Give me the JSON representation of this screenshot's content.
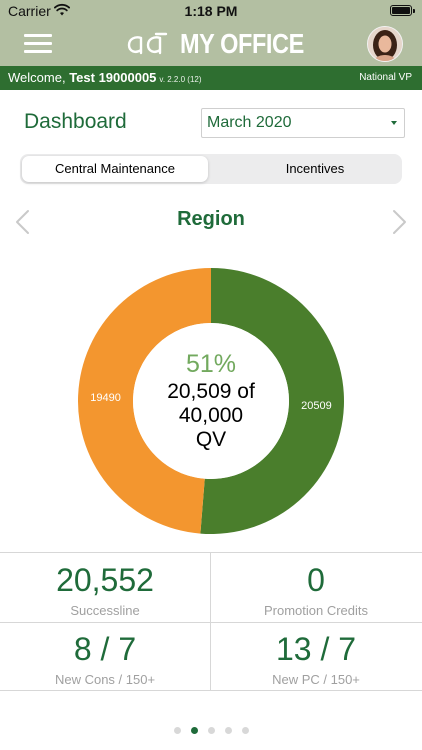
{
  "status_bar": {
    "carrier": "Carrier",
    "time": "1:18 PM"
  },
  "header": {
    "title": "MY OFFICE",
    "logo": "amway-logo",
    "menu_icon": "hamburger-menu-icon",
    "avatar": "user-avatar"
  },
  "welcome_bar": {
    "greeting": "Welcome,",
    "user": "Test 19000005",
    "version": "v. 2.2.0 (12)",
    "rank": "National VP"
  },
  "dashboard": {
    "title": "Dashboard",
    "month_selected": "March 2020"
  },
  "tabs": [
    {
      "label": "Central Maintenance",
      "active": true
    },
    {
      "label": "Incentives",
      "active": false
    }
  ],
  "region": {
    "title": "Region"
  },
  "donut": {
    "percent_label": "51%",
    "center_lines": [
      "20,509 of",
      "40,000",
      "QV"
    ],
    "colors": {
      "achieved": "#4a7e2c",
      "remaining": "#f3962f"
    }
  },
  "chart_data": {
    "type": "pie",
    "categories": [
      "achieved",
      "remaining"
    ],
    "values": [
      20509,
      19490
    ],
    "labels": [
      "20509",
      "19490"
    ]
  },
  "stats": [
    {
      "value": "20,552",
      "label": "Successline"
    },
    {
      "value": "0",
      "label": "Promotion Credits"
    },
    {
      "value": "8 / 7",
      "label": "New Cons / 150+"
    },
    {
      "value": "13 / 7",
      "label": "New PC / 150+"
    }
  ],
  "pagination": {
    "count": 5,
    "active_index": 1
  },
  "colors": {
    "brand_green": "#1f6b3a",
    "header_bg": "#b3bfa2",
    "welcome_bg": "#2e6e30"
  }
}
